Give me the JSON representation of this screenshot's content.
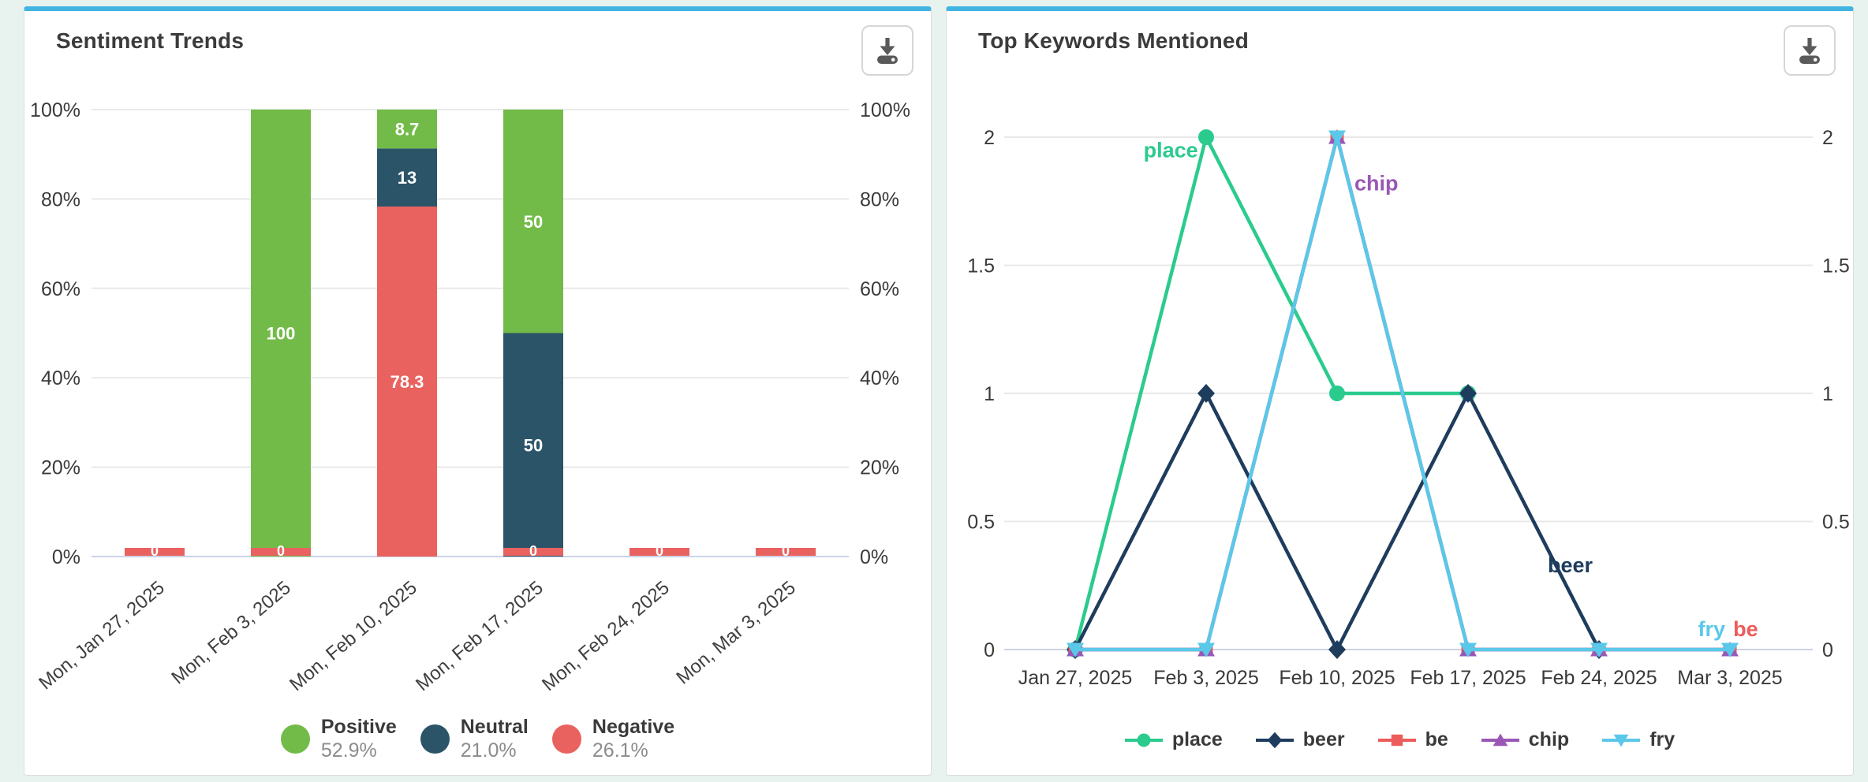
{
  "page": {
    "background": "#e8f3ef",
    "card_accent_color": "#41b4e2"
  },
  "cards": [
    {
      "title": "Sentiment Trends",
      "download_icon": "download-icon"
    },
    {
      "title": "Top Keywords Mentioned",
      "download_icon": "download-icon"
    }
  ],
  "chart_data": [
    {
      "type": "bar",
      "subtype": "stacked-percent",
      "title": "Sentiment Trends",
      "categories": [
        "Mon, Jan 27, 2025",
        "Mon, Feb 3, 2025",
        "Mon, Feb 10, 2025",
        "Mon, Feb 17, 2025",
        "Mon, Feb 24, 2025",
        "Mon, Mar 3, 2025"
      ],
      "y_ticks": [
        "100%",
        "80%",
        "60%",
        "40%",
        "20%",
        "0%"
      ],
      "ylim": [
        0,
        100
      ],
      "grid": true,
      "legend_position": "bottom",
      "axis_line_color": "#ccd3e6",
      "gridline_color": "#e9e9e9",
      "series": [
        {
          "name": "Positive",
          "color": "#73bb49",
          "values": [
            0,
            100,
            8.7,
            50,
            0,
            0
          ],
          "legend_value": "52.9%"
        },
        {
          "name": "Neutral",
          "color": "#2b5468",
          "values": [
            0,
            0,
            13,
            50,
            0,
            0
          ],
          "legend_value": "21.0%"
        },
        {
          "name": "Negative",
          "color": "#e9625f",
          "values": [
            0,
            0,
            78.3,
            0,
            0,
            0
          ],
          "legend_value": "26.1%"
        }
      ],
      "zero_strip": {
        "series": "Negative",
        "label": "0"
      }
    },
    {
      "type": "line",
      "title": "Top Keywords Mentioned",
      "categories": [
        "Jan 27, 2025",
        "Feb 3, 2025",
        "Feb 10, 2025",
        "Feb 17, 2025",
        "Feb 24, 2025",
        "Mar 3, 2025"
      ],
      "y_ticks": [
        2,
        1.5,
        1,
        0.5,
        0
      ],
      "ylim": [
        0,
        2
      ],
      "grid": true,
      "legend_position": "bottom",
      "axis_line_color": "#ccd3e6",
      "gridline_color": "#e8e8e8",
      "series": [
        {
          "name": "place",
          "color": "#2bcb8e",
          "marker": "circle",
          "values": [
            0,
            2,
            1,
            1,
            null,
            null
          ]
        },
        {
          "name": "beer",
          "color": "#1e3c5d",
          "marker": "diamond",
          "values": [
            0,
            1,
            0,
            1,
            0,
            null
          ]
        },
        {
          "name": "be",
          "color": "#ed5c5c",
          "marker": "square",
          "values": [
            0,
            0,
            2,
            0,
            0,
            0
          ]
        },
        {
          "name": "chip",
          "color": "#9a57b5",
          "marker": "triangle-up",
          "values": [
            0,
            0,
            2,
            0,
            0,
            0
          ]
        },
        {
          "name": "fry",
          "color": "#5ac8e9",
          "marker": "triangle-down",
          "values": [
            0,
            0,
            2,
            0,
            0,
            0
          ]
        }
      ],
      "annotations": [
        {
          "text": "place",
          "color": "#2bcb8e",
          "x": 0.73,
          "y": 1.95
        },
        {
          "text": "chip",
          "color": "#9a57b5",
          "x": 2.3,
          "y": 1.82
        },
        {
          "text": "beer",
          "color": "#1e3c5d",
          "x": 3.78,
          "y": 0.33
        },
        {
          "text": "fry",
          "color": "#5ac8e9",
          "x": 4.86,
          "y": 0.08
        },
        {
          "text": "be",
          "color": "#ed5c5c",
          "x": 5.12,
          "y": 0.08
        }
      ]
    }
  ]
}
